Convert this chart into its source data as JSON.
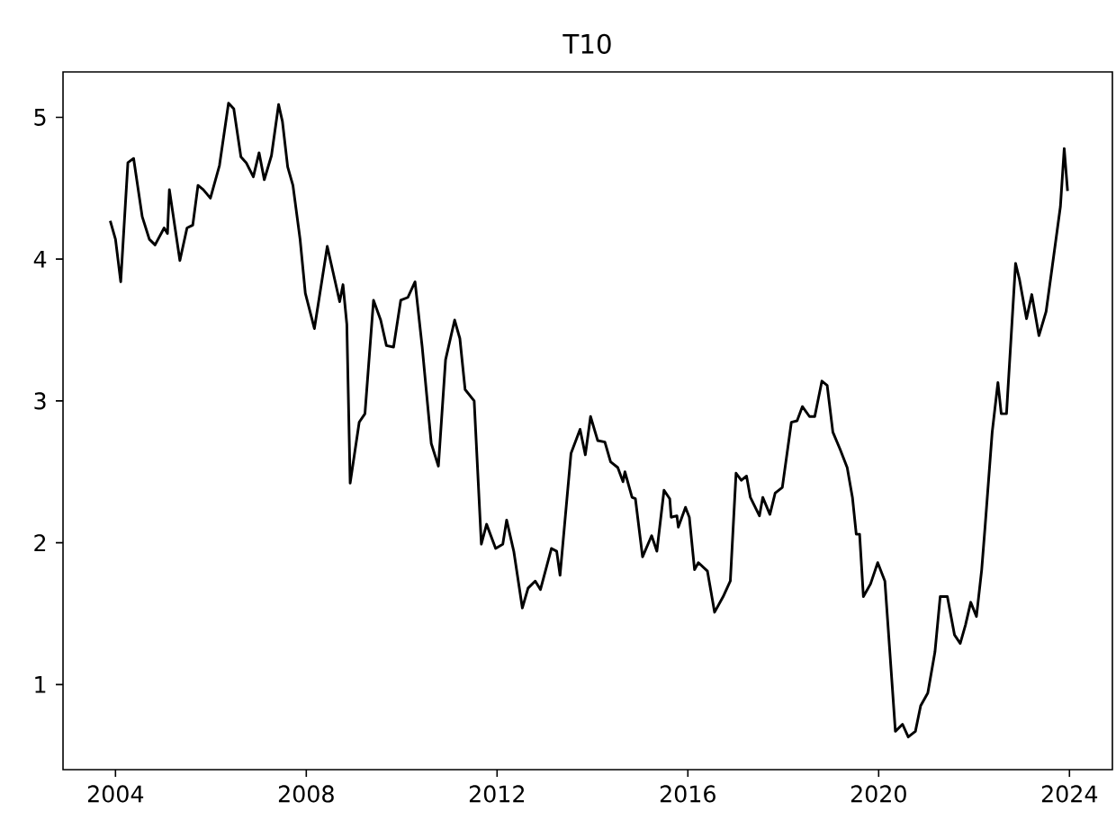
{
  "chart_data": {
    "type": "line",
    "title": "T10",
    "color": "#000000",
    "x": [
      2003.89,
      2004.0,
      2004.11,
      2004.26,
      2004.38,
      2004.56,
      2004.71,
      2004.83,
      2005.02,
      2005.09,
      2005.13,
      2005.35,
      2005.5,
      2005.62,
      2005.73,
      2005.84,
      2005.99,
      2006.18,
      2006.37,
      2006.48,
      2006.63,
      2006.74,
      2006.89,
      2007.01,
      2007.12,
      2007.27,
      2007.42,
      2007.5,
      2007.61,
      2007.72,
      2007.87,
      2007.98,
      2008.17,
      2008.44,
      2008.7,
      2008.77,
      2008.85,
      2008.92,
      2009.11,
      2009.23,
      2009.41,
      2009.56,
      2009.68,
      2009.83,
      2009.98,
      2010.13,
      2010.28,
      2010.43,
      2010.62,
      2010.77,
      2010.92,
      2011.11,
      2011.22,
      2011.33,
      2011.52,
      2011.67,
      2011.78,
      2011.97,
      2012.12,
      2012.2,
      2012.35,
      2012.53,
      2012.65,
      2012.8,
      2012.91,
      2013.14,
      2013.25,
      2013.32,
      2013.55,
      2013.74,
      2013.85,
      2013.96,
      2014.11,
      2014.26,
      2014.38,
      2014.53,
      2014.64,
      2014.68,
      2014.83,
      2014.9,
      2015.05,
      2015.24,
      2015.35,
      2015.5,
      2015.62,
      2015.65,
      2015.77,
      2015.8,
      2015.95,
      2016.03,
      2016.14,
      2016.22,
      2016.41,
      2016.56,
      2016.74,
      2016.89,
      2017.01,
      2017.12,
      2017.23,
      2017.31,
      2017.5,
      2017.57,
      2017.72,
      2017.83,
      2017.98,
      2018.17,
      2018.29,
      2018.4,
      2018.55,
      2018.66,
      2018.81,
      2018.92,
      2019.04,
      2019.19,
      2019.34,
      2019.45,
      2019.53,
      2019.6,
      2019.68,
      2019.83,
      2019.98,
      2020.13,
      2020.28,
      2020.35,
      2020.5,
      2020.62,
      2020.77,
      2020.88,
      2021.03,
      2021.18,
      2021.29,
      2021.44,
      2021.59,
      2021.71,
      2021.82,
      2021.93,
      2022.05,
      2022.16,
      2022.23,
      2022.38,
      2022.5,
      2022.57,
      2022.68,
      2022.87,
      2022.95,
      2023.1,
      2023.21,
      2023.36,
      2023.51,
      2023.62,
      2023.81,
      2023.89,
      2023.96
    ],
    "values": [
      4.27,
      4.14,
      3.84,
      4.68,
      4.71,
      4.3,
      4.14,
      4.1,
      4.22,
      4.18,
      4.49,
      3.99,
      4.22,
      4.24,
      4.52,
      4.49,
      4.43,
      4.66,
      5.1,
      5.06,
      4.72,
      4.68,
      4.58,
      4.75,
      4.56,
      4.73,
      5.09,
      4.97,
      4.65,
      4.52,
      4.14,
      3.76,
      3.51,
      4.09,
      3.7,
      3.82,
      3.54,
      2.42,
      2.85,
      2.91,
      3.71,
      3.57,
      3.39,
      3.38,
      3.71,
      3.73,
      3.84,
      3.38,
      2.7,
      2.54,
      3.29,
      3.57,
      3.44,
      3.08,
      3.0,
      1.99,
      2.13,
      1.96,
      1.99,
      2.16,
      1.94,
      1.54,
      1.68,
      1.73,
      1.67,
      1.96,
      1.94,
      1.77,
      2.63,
      2.8,
      2.62,
      2.89,
      2.72,
      2.71,
      2.57,
      2.53,
      2.43,
      2.5,
      2.32,
      2.31,
      1.9,
      2.05,
      1.94,
      2.37,
      2.31,
      2.18,
      2.19,
      2.11,
      2.25,
      2.18,
      1.81,
      1.86,
      1.8,
      1.51,
      1.62,
      1.73,
      2.49,
      2.44,
      2.47,
      2.32,
      2.19,
      2.32,
      2.2,
      2.35,
      2.39,
      2.85,
      2.86,
      2.96,
      2.89,
      2.89,
      3.14,
      3.11,
      2.78,
      2.66,
      2.53,
      2.32,
      2.06,
      2.06,
      1.62,
      1.71,
      1.86,
      1.73,
      1.01,
      0.67,
      0.72,
      0.63,
      0.67,
      0.85,
      0.94,
      1.23,
      1.62,
      1.62,
      1.35,
      1.29,
      1.42,
      1.58,
      1.48,
      1.81,
      2.11,
      2.78,
      3.13,
      2.91,
      2.91,
      3.97,
      3.86,
      3.58,
      3.75,
      3.46,
      3.63,
      3.9,
      4.37,
      4.78,
      4.48
    ],
    "xlim": [
      2002.9,
      2024.9
    ],
    "ylim": [
      0.4,
      5.32
    ],
    "xticks": [
      2004,
      2008,
      2012,
      2016,
      2020,
      2024
    ],
    "yticks": [
      1,
      2,
      3,
      4,
      5
    ]
  }
}
